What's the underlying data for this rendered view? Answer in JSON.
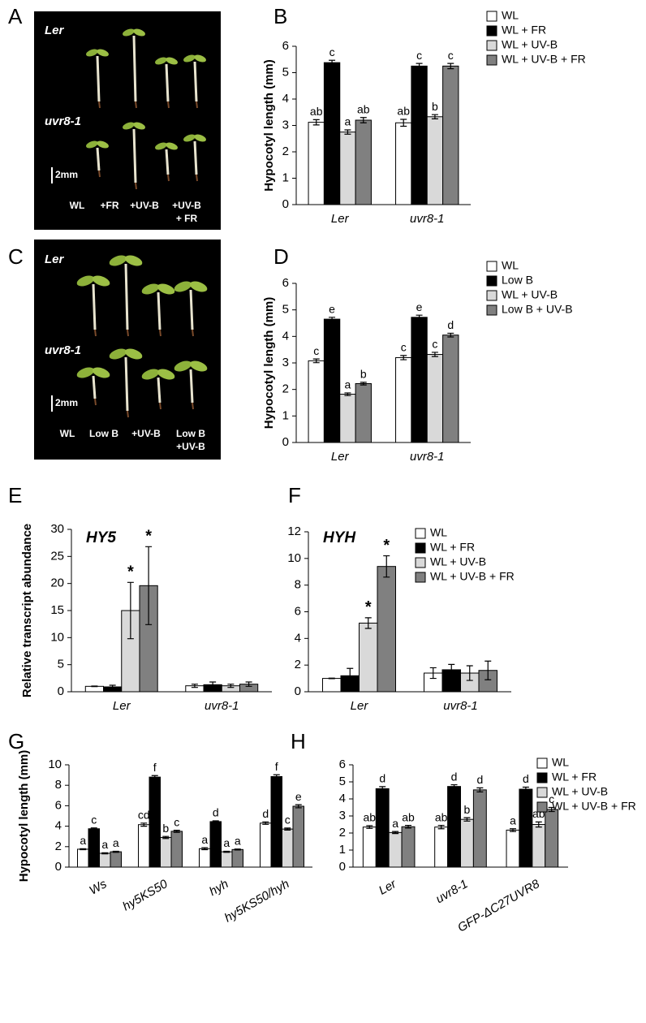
{
  "panel_letters": [
    "A",
    "B",
    "C",
    "D",
    "E",
    "F",
    "G",
    "H"
  ],
  "photos": [
    {
      "rows": [
        "Ler",
        "uvr8-1"
      ],
      "scale": "2mm",
      "labels": [
        [
          "WL"
        ],
        [
          "+FR"
        ],
        [
          "+UV-B"
        ],
        [
          "+UV-B",
          "+ FR"
        ]
      ]
    },
    {
      "rows": [
        "Ler",
        "uvr8-1"
      ],
      "scale": "2mm",
      "labels": [
        [
          "WL"
        ],
        [
          "Low B"
        ],
        [
          "+UV-B"
        ],
        [
          "Low B",
          "+UV-B"
        ]
      ]
    }
  ],
  "chart_data": [
    {
      "type": "bar",
      "ylabel": "Hypocotyl length (mm)",
      "categories": [
        "Ler",
        "uvr8-1"
      ],
      "ylim": [
        0,
        6
      ],
      "yticks": [
        0,
        1,
        2,
        3,
        4,
        5,
        6
      ],
      "legend": true,
      "series": [
        {
          "name": "WL",
          "color": "#ffffff",
          "values": [
            3.12,
            3.1
          ],
          "errors": [
            0.1,
            0.13
          ],
          "labels": [
            "ab",
            "ab"
          ]
        },
        {
          "name": "WL + FR",
          "color": "#000000",
          "values": [
            5.38,
            5.25
          ],
          "errors": [
            0.09,
            0.1
          ],
          "labels": [
            "c",
            "c"
          ]
        },
        {
          "name": "WL + UV-B",
          "color": "#d9d9d9",
          "values": [
            2.75,
            3.33
          ],
          "errors": [
            0.08,
            0.08
          ],
          "labels": [
            "a",
            "b"
          ]
        },
        {
          "name": "WL + UV-B + FR",
          "color": "#808080",
          "values": [
            3.2,
            5.25
          ],
          "errors": [
            0.1,
            0.1
          ],
          "labels": [
            "ab",
            "c"
          ]
        }
      ]
    },
    {
      "type": "bar",
      "ylabel": "Hypocotyl length (mm)",
      "categories": [
        "Ler",
        "uvr8-1"
      ],
      "ylim": [
        0,
        6
      ],
      "yticks": [
        0,
        1,
        2,
        3,
        4,
        5,
        6
      ],
      "legend": true,
      "series": [
        {
          "name": "WL",
          "color": "#ffffff",
          "values": [
            3.08,
            3.2
          ],
          "errors": [
            0.07,
            0.08
          ],
          "labels": [
            "c",
            "c"
          ]
        },
        {
          "name": "Low B",
          "color": "#000000",
          "values": [
            4.65,
            4.72
          ],
          "errors": [
            0.07,
            0.08
          ],
          "labels": [
            "e",
            "e"
          ]
        },
        {
          "name": "WL + UV-B",
          "color": "#d9d9d9",
          "values": [
            1.82,
            3.32
          ],
          "errors": [
            0.05,
            0.08
          ],
          "labels": [
            "a",
            "c"
          ]
        },
        {
          "name": "Low B + UV-B",
          "color": "#808080",
          "values": [
            2.22,
            4.05
          ],
          "errors": [
            0.05,
            0.07
          ],
          "labels": [
            "b",
            "d"
          ]
        }
      ]
    },
    {
      "type": "bar",
      "title": "HY5",
      "ylabel": "Relative transcript abundance",
      "categories": [
        "Ler",
        "uvr8-1"
      ],
      "ylim": [
        0,
        30
      ],
      "yticks": [
        0,
        5,
        10,
        15,
        20,
        25,
        30
      ],
      "legend": false,
      "series": [
        {
          "color": "#ffffff",
          "values": [
            1,
            1.1
          ],
          "errors": [
            0.05,
            0.3
          ]
        },
        {
          "color": "#000000",
          "values": [
            0.9,
            1.3
          ],
          "errors": [
            0.3,
            0.5
          ]
        },
        {
          "color": "#d9d9d9",
          "values": [
            15,
            1.1
          ],
          "errors": [
            5.2,
            0.3
          ],
          "labels": [
            "*",
            null
          ]
        },
        {
          "color": "#808080",
          "values": [
            19.6,
            1.4
          ],
          "errors": [
            7.2,
            0.4
          ],
          "labels": [
            "*",
            null
          ]
        }
      ]
    },
    {
      "type": "bar",
      "title": "HYH",
      "categories": [
        "Ler",
        "uvr8-1"
      ],
      "ylim": [
        0,
        12
      ],
      "yticks": [
        0,
        2,
        4,
        6,
        8,
        10,
        12
      ],
      "legend": true,
      "series": [
        {
          "name": "WL",
          "color": "#ffffff",
          "values": [
            1,
            1.4
          ],
          "errors": [
            0.02,
            0.4
          ]
        },
        {
          "name": "WL + FR",
          "color": "#000000",
          "values": [
            1.2,
            1.65
          ],
          "errors": [
            0.55,
            0.4
          ]
        },
        {
          "name": "WL + UV-B",
          "color": "#d9d9d9",
          "values": [
            5.15,
            1.4
          ],
          "errors": [
            0.4,
            0.55
          ],
          "labels": [
            "*",
            null
          ]
        },
        {
          "name": "WL + UV-B + FR",
          "color": "#808080",
          "values": [
            9.4,
            1.6
          ],
          "errors": [
            0.8,
            0.7
          ],
          "labels": [
            "*",
            null
          ]
        }
      ]
    },
    {
      "type": "bar",
      "ylabel": "Hypocotyl length (mm)",
      "categories": [
        "Ws",
        "hy5KS50",
        "hyh",
        "hy5KS50/hyh"
      ],
      "ylim": [
        0,
        10
      ],
      "yticks": [
        0,
        2,
        4,
        6,
        8,
        10
      ],
      "legend": false,
      "series": [
        {
          "color": "#ffffff",
          "values": [
            1.75,
            4.15,
            1.8,
            4.3
          ],
          "errors": [
            0.05,
            0.15,
            0.1,
            0.12
          ],
          "labels": [
            "a",
            "cd",
            "a",
            "d"
          ]
        },
        {
          "color": "#000000",
          "values": [
            3.75,
            8.8,
            4.45,
            8.85
          ],
          "errors": [
            0.08,
            0.15,
            0.08,
            0.18
          ],
          "labels": [
            "c",
            "f",
            "d",
            "f"
          ]
        },
        {
          "color": "#d9d9d9",
          "values": [
            1.35,
            2.9,
            1.5,
            3.72
          ],
          "errors": [
            0.05,
            0.1,
            0.05,
            0.1
          ],
          "labels": [
            "a",
            "b",
            "a",
            "c"
          ]
        },
        {
          "color": "#808080",
          "values": [
            1.5,
            3.5,
            1.72,
            5.95
          ],
          "errors": [
            0.05,
            0.1,
            0.05,
            0.15
          ],
          "labels": [
            "a",
            "c",
            "a",
            "e"
          ]
        }
      ]
    },
    {
      "type": "bar",
      "categories": [
        "Ler",
        "uvr8-1",
        "GFP-ΔC27UVR8"
      ],
      "ylim": [
        0,
        6
      ],
      "yticks": [
        0,
        1,
        2,
        3,
        4,
        5,
        6
      ],
      "legend": true,
      "series": [
        {
          "name": "WL",
          "color": "#ffffff",
          "values": [
            2.35,
            2.35,
            2.17
          ],
          "errors": [
            0.08,
            0.1,
            0.08
          ],
          "labels": [
            "ab",
            "ab",
            "a"
          ]
        },
        {
          "name": "WL + FR",
          "color": "#000000",
          "values": [
            4.6,
            4.73,
            4.57
          ],
          "errors": [
            0.12,
            0.1,
            0.12
          ],
          "labels": [
            "d",
            "d",
            "d"
          ]
        },
        {
          "name": "WL + UV-B",
          "color": "#d9d9d9",
          "values": [
            2.03,
            2.8,
            2.5
          ],
          "errors": [
            0.06,
            0.1,
            0.15
          ],
          "labels": [
            "a",
            "b",
            "ab"
          ]
        },
        {
          "name": "WL + UV-B + FR",
          "color": "#808080",
          "values": [
            2.37,
            4.53,
            3.38
          ],
          "errors": [
            0.08,
            0.12,
            0.12
          ],
          "labels": [
            "ab",
            "d",
            "c"
          ]
        }
      ]
    }
  ]
}
